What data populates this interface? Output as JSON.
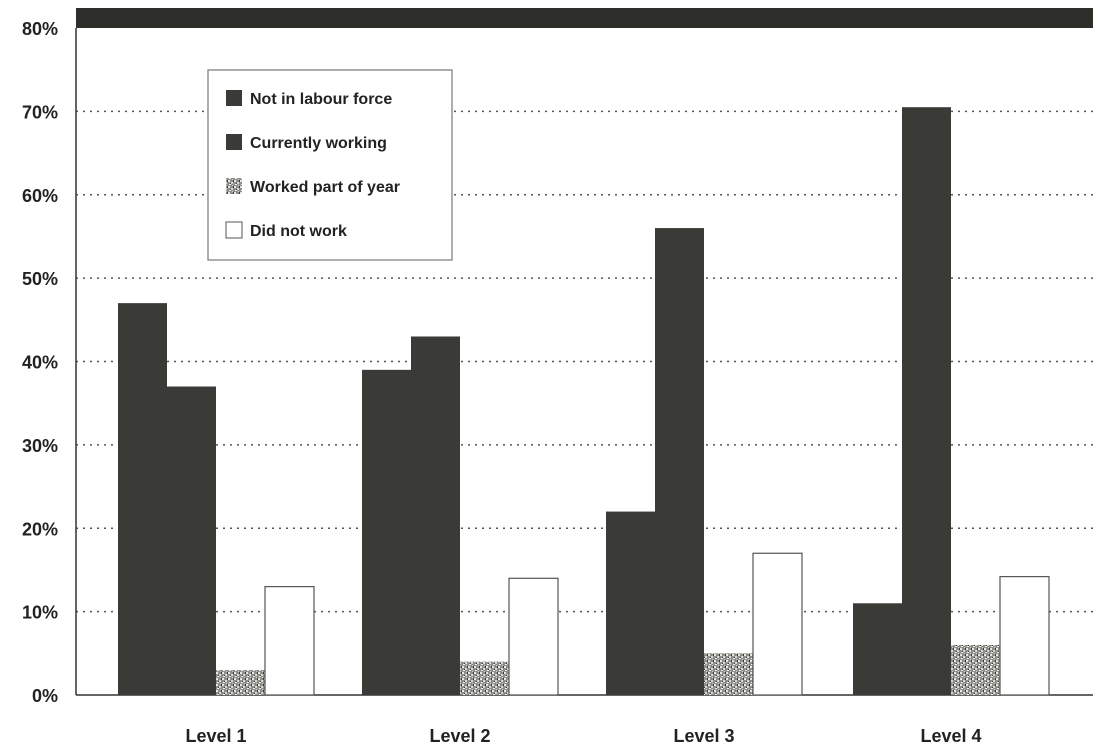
{
  "chart_data": {
    "type": "bar",
    "categories": [
      "Level 1",
      "Level 2",
      "Level 3",
      "Level 4"
    ],
    "series": [
      {
        "name": "Not in labour force",
        "values": [
          47,
          39,
          22,
          11
        ],
        "color": "#3a3a36"
      },
      {
        "name": "Currently working",
        "values": [
          37,
          43,
          56,
          70.5
        ],
        "color": "#3a3a36"
      },
      {
        "name": "Worked part of year",
        "values": [
          3,
          4,
          5,
          6
        ],
        "color": "#9a9a96"
      },
      {
        "name": "Did not work",
        "values": [
          13,
          14,
          17,
          14.2
        ],
        "color": "#ffffff"
      }
    ],
    "yticks": [
      "0%",
      "10%",
      "20%",
      "30%",
      "40%",
      "50%",
      "60%",
      "70%",
      "80%"
    ],
    "ylim": [
      0,
      80
    ],
    "grid": true,
    "legend_position": "top-left"
  }
}
